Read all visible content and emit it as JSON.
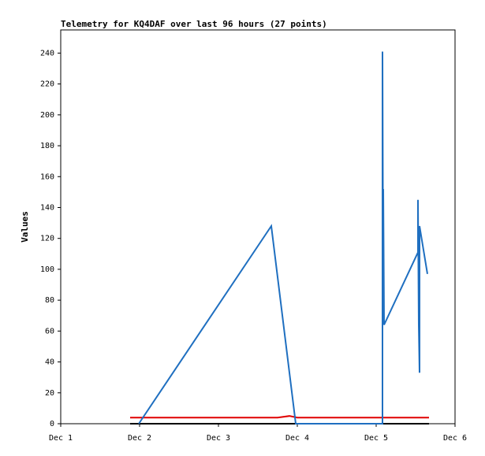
{
  "chart_data": {
    "type": "line",
    "title": "Telemetry for KQ4DAF over last 96 hours (27 points)",
    "y_label": "Values",
    "xlim": [
      1,
      6
    ],
    "xticks": [
      {
        "value": 1,
        "label": "Dec 1"
      },
      {
        "value": 2,
        "label": "Dec 2"
      },
      {
        "value": 3,
        "label": "Dec 3"
      },
      {
        "value": 4,
        "label": "Dec 4"
      },
      {
        "value": 5,
        "label": "Dec 5"
      },
      {
        "value": 6,
        "label": "Dec 6"
      }
    ],
    "ylim": [
      0,
      255
    ],
    "yticks": [
      0,
      20,
      40,
      60,
      80,
      100,
      120,
      140,
      160,
      180,
      200,
      220,
      240
    ],
    "series": [
      {
        "color": "#000000",
        "x": [
          1.88,
          5.67
        ],
        "values": [
          0,
          0
        ]
      },
      {
        "color": "#e00000",
        "x": [
          1.88,
          3.75,
          3.9,
          4.0,
          5.67
        ],
        "values": [
          4,
          4,
          5,
          4,
          4
        ]
      },
      {
        "color": "#1f6fc0",
        "x": [
          1.99,
          3.67,
          3.98,
          5.08,
          5.08,
          5.09,
          5.09,
          5.1,
          5.53,
          5.53,
          5.54,
          5.55,
          5.55,
          5.65
        ],
        "values": [
          0,
          128,
          0,
          0,
          241,
          65,
          152,
          64,
          111,
          145,
          64,
          33,
          128,
          97
        ]
      }
    ]
  }
}
